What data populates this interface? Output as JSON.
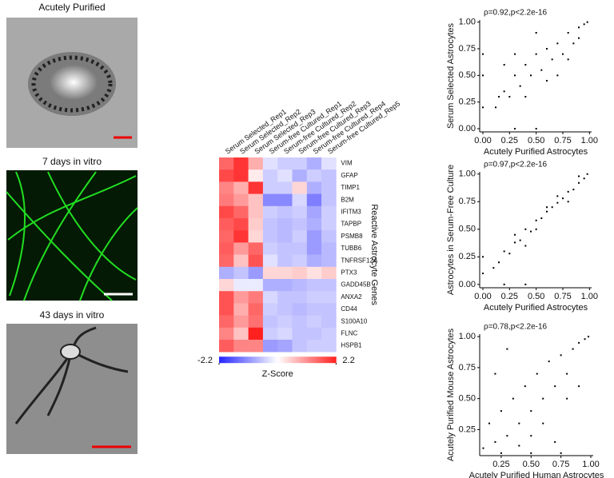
{
  "panels": [
    {
      "title": "Acutely Purified"
    },
    {
      "title": "7 days in vitro"
    },
    {
      "title": "43 days in vitro"
    }
  ],
  "chart_data": [
    {
      "type": "heatmap",
      "columns": [
        "Serum Selected_Rep1",
        "Serum Selected_Rep2",
        "Serum Selected_Rep3",
        "Serum-free Cultured_Rep1",
        "Serum-free Cultured_Rep2",
        "Serum-free Cultured_Rep3",
        "Serum-free Cultured_Rep4",
        "Serum-free Cultured_Rep5"
      ],
      "rows": [
        "VIM",
        "GFAP",
        "TIMP1",
        "B2M",
        "IFITM3",
        "TAPBP",
        "PSMB8",
        "TUBB6",
        "TNFRSF12A",
        "PTX3",
        "GADD45B",
        "ANXA2",
        "CD44",
        "S100A10",
        "FLNC",
        "HSPB1"
      ],
      "values": [
        [
          1.5,
          2.0,
          0.8,
          -0.3,
          -0.5,
          -0.5,
          -0.8,
          -0.3
        ],
        [
          1.8,
          2.0,
          0.2,
          -0.5,
          -0.3,
          -0.8,
          -0.5,
          -0.6
        ],
        [
          1.2,
          0.8,
          2.0,
          -0.5,
          -0.5,
          0.4,
          -0.8,
          -0.6
        ],
        [
          1.3,
          1.0,
          0.6,
          -1.2,
          -1.2,
          -0.4,
          -1.3,
          -0.6
        ],
        [
          1.8,
          1.5,
          0.6,
          -0.5,
          -0.6,
          -0.5,
          -0.9,
          -0.5
        ],
        [
          1.6,
          1.8,
          0.5,
          -0.6,
          -0.7,
          -0.6,
          -0.8,
          -0.5
        ],
        [
          1.5,
          2.0,
          0.4,
          -0.6,
          -0.7,
          -0.5,
          -1.0,
          -0.6
        ],
        [
          1.6,
          1.0,
          1.5,
          -0.5,
          -0.6,
          -0.6,
          -1.0,
          -0.7
        ],
        [
          1.5,
          0.6,
          1.7,
          -0.3,
          -0.6,
          -0.5,
          -0.8,
          -0.7
        ],
        [
          -0.8,
          -0.6,
          -1.0,
          0.4,
          0.4,
          0.5,
          0.3,
          0.5
        ],
        [
          0.4,
          -0.2,
          -0.2,
          -0.8,
          -0.8,
          -0.7,
          -0.6,
          -0.6
        ],
        [
          1.7,
          1.0,
          1.3,
          -0.4,
          -0.6,
          -0.6,
          -0.5,
          -0.5
        ],
        [
          1.7,
          0.8,
          1.5,
          -0.5,
          -0.6,
          -0.7,
          -0.6,
          -0.6
        ],
        [
          1.5,
          1.0,
          1.4,
          -0.6,
          -0.5,
          -0.6,
          -0.5,
          -0.6
        ],
        [
          1.2,
          0.6,
          2.2,
          -0.5,
          -0.4,
          -0.6,
          -0.6,
          -0.5
        ],
        [
          1.6,
          1.2,
          1.2,
          -1.0,
          -0.9,
          -0.6,
          -0.5,
          -0.5
        ]
      ],
      "row_axis_label": "Reactive Astrocyte Genes",
      "colorbar_label": "Z-Score",
      "zlim": [
        -2.2,
        2.2
      ],
      "colorbar_ticks": [
        {
          "value": -2.2,
          "label": "-2.2"
        },
        2.2
      ],
      "colors": [
        "#2424ff",
        "#ffffff",
        "#ff2020"
      ]
    },
    {
      "type": "scatter",
      "title": "ρ=0.92,p<2.2e-16",
      "x_label": "Acutely Purified Astrocytes",
      "y_label": "Serum Selected Astrocytes",
      "xlim": [
        -0.03,
        1.02
      ],
      "ylim": [
        -0.03,
        1.02
      ],
      "color": "#000000",
      "xticks": [
        {
          "value": 0,
          "label": "0.00"
        },
        0.25,
        {
          "value": 0.5,
          "label": "0.50"
        },
        0.75,
        {
          "value": 1,
          "label": "1.00"
        }
      ],
      "yticks": [
        {
          "value": 0,
          "label": "0.00"
        },
        0.25,
        {
          "value": 0.5,
          "label": "0.50"
        },
        0.75,
        {
          "value": 1,
          "label": "1.00"
        }
      ],
      "x": [
        0.12,
        0.15,
        0.2,
        0.25,
        0.3,
        0.35,
        0.4,
        0.45,
        0.5,
        0.55,
        0.6,
        0.65,
        0.7,
        0.75,
        0.8,
        0.85,
        0.9,
        0.95,
        0.98,
        0.3,
        0.5,
        0.7,
        0.2,
        0.4,
        0.6,
        0.8,
        0.9,
        0.0,
        0.0,
        0.0,
        0.3,
        0.5
      ],
      "y": [
        0.2,
        0.3,
        0.35,
        0.3,
        0.5,
        0.4,
        0.6,
        0.5,
        0.7,
        0.55,
        0.75,
        0.65,
        0.8,
        0.7,
        0.9,
        0.8,
        0.95,
        0.98,
        1.0,
        0.7,
        0.9,
        0.5,
        0.6,
        0.3,
        0.45,
        0.65,
        0.85,
        0.2,
        0.5,
        0.7,
        0.0,
        0.0
      ]
    },
    {
      "type": "scatter",
      "title": "ρ=0.97,p<2.2e-16",
      "x_label": "Acutely Purified Astrocytes",
      "y_label": "Astrocytes in Serum-Free Culture",
      "xlim": [
        -0.03,
        1.02
      ],
      "ylim": [
        -0.03,
        1.02
      ],
      "color": "#000000",
      "xticks": [
        {
          "value": 0,
          "label": "0.00"
        },
        0.25,
        {
          "value": 0.5,
          "label": "0.50"
        },
        0.75,
        {
          "value": 1,
          "label": "1.00"
        }
      ],
      "yticks": [
        {
          "value": 0,
          "label": "0.00"
        },
        0.25,
        {
          "value": 0.5,
          "label": "0.50"
        },
        0.75,
        {
          "value": 1,
          "label": "1.00"
        }
      ],
      "x": [
        0.1,
        0.15,
        0.2,
        0.25,
        0.3,
        0.35,
        0.4,
        0.45,
        0.5,
        0.55,
        0.6,
        0.65,
        0.7,
        0.75,
        0.8,
        0.85,
        0.9,
        0.95,
        0.98,
        0.3,
        0.5,
        0.7,
        0.4,
        0.6,
        0.8,
        0.0,
        0.0,
        0.2,
        0.4,
        0.9
      ],
      "y": [
        0.15,
        0.2,
        0.3,
        0.28,
        0.38,
        0.4,
        0.5,
        0.48,
        0.58,
        0.6,
        0.66,
        0.7,
        0.74,
        0.78,
        0.84,
        0.86,
        0.92,
        0.96,
        1.0,
        0.45,
        0.5,
        0.8,
        0.35,
        0.7,
        0.75,
        0.1,
        0.25,
        0.0,
        0.0,
        0.98
      ]
    },
    {
      "type": "scatter",
      "title": "ρ=0.78,p<2.2e-16",
      "x_label": "Acutely Purified Human Astrocytes",
      "y_label": "Acutely Purified Mouse Astrocytes",
      "xlim": [
        0.07,
        1.02
      ],
      "ylim": [
        0.04,
        1.02
      ],
      "color": "#000000",
      "xticks": [
        0.25,
        {
          "value": 0.5,
          "label": "0.50"
        },
        0.75,
        {
          "value": 1,
          "label": "1.00"
        }
      ],
      "yticks": [
        0.25,
        {
          "value": 0.5,
          "label": "0.50"
        },
        0.75,
        {
          "value": 1,
          "label": "1.00"
        }
      ],
      "x": [
        0.1,
        0.15,
        0.2,
        0.25,
        0.3,
        0.35,
        0.4,
        0.45,
        0.5,
        0.55,
        0.6,
        0.65,
        0.7,
        0.75,
        0.8,
        0.85,
        0.9,
        0.95,
        0.98,
        0.2,
        0.3,
        0.4,
        0.5,
        0.6,
        0.7,
        0.8,
        0.9,
        0.25,
        0.5,
        0.75
      ],
      "y": [
        0.1,
        0.3,
        0.15,
        0.4,
        0.2,
        0.5,
        0.3,
        0.6,
        0.4,
        0.7,
        0.5,
        0.8,
        0.6,
        0.85,
        0.7,
        0.9,
        0.95,
        0.98,
        1.0,
        0.7,
        0.9,
        0.12,
        0.2,
        0.3,
        0.15,
        0.5,
        0.6,
        0.06,
        0.06,
        0.06
      ]
    }
  ]
}
